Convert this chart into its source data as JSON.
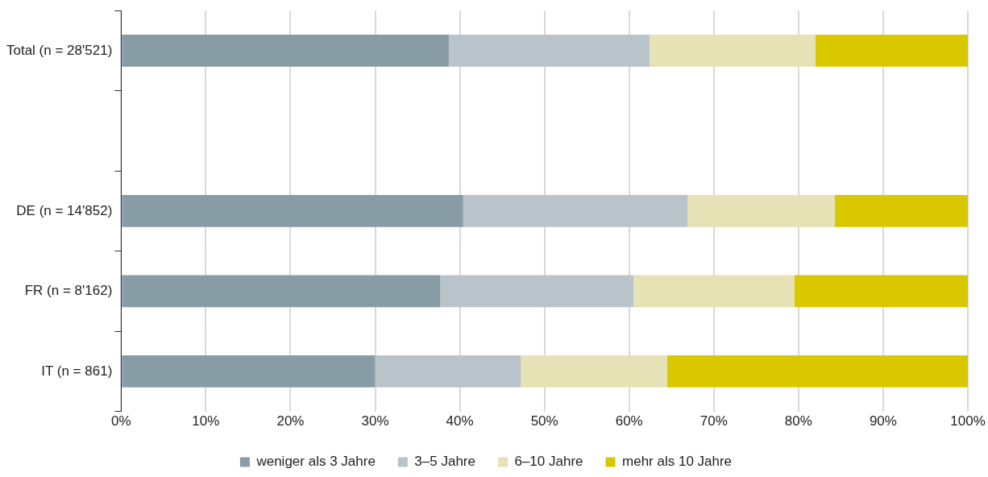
{
  "chart_data": {
    "type": "bar",
    "orientation": "horizontal",
    "stacked": true,
    "categories": [
      "Total (n = 28'521)",
      null,
      "DE (n = 14'852)",
      "FR (n = 8'162)",
      "IT (n = 861)"
    ],
    "series": [
      {
        "name": "weniger als 3 Jahre",
        "color": "#889ca6",
        "values": [
          38.7,
          null,
          40.4,
          37.7,
          30.0
        ]
      },
      {
        "name": "3–5 Jahre",
        "color": "#b8c4c9",
        "values": [
          23.7,
          null,
          26.5,
          22.8,
          17.2
        ]
      },
      {
        "name": "6–10 Jahre",
        "color": "#e6e2b5",
        "values": [
          19.6,
          null,
          17.4,
          19.0,
          17.3
        ]
      },
      {
        "name": "mehr als 10 Jahre",
        "color": "#d9c800",
        "values": [
          18.0,
          null,
          15.7,
          20.5,
          35.5
        ]
      }
    ],
    "xlim": [
      0,
      100
    ],
    "xticks": [
      {
        "value": 0,
        "label": "0%"
      },
      {
        "value": 10,
        "label": "10%"
      },
      {
        "value": 20,
        "label": "20%"
      },
      {
        "value": 30,
        "label": "30%"
      },
      {
        "value": 40,
        "label": "40%"
      },
      {
        "value": 50,
        "label": "50%"
      },
      {
        "value": 60,
        "label": "60%"
      },
      {
        "value": 70,
        "label": "70%"
      },
      {
        "value": 80,
        "label": "80%"
      },
      {
        "value": 90,
        "label": "90%"
      },
      {
        "value": 100,
        "label": "100%"
      }
    ],
    "grid": "x",
    "legend": "bottom"
  }
}
